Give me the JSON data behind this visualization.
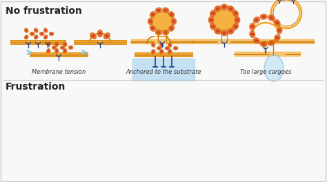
{
  "title_no_frustration": "No frustration",
  "title_frustration": "Frustration",
  "label_membrane_tension": "Membrane tension",
  "label_anchored": "Anchored to the substrate",
  "label_too_large": "Too large cargoes",
  "bg_color": "#f8f8f8",
  "border_color": "#cccccc",
  "membrane_color": "#f5a623",
  "membrane_dark": "#cc7700",
  "clathrin_outer": "#e8622a",
  "clathrin_inner": "#cc3311",
  "clathrin_highlight": "#ff9966",
  "adapter_color": "#1a3d8f",
  "adapter_light": "#4466cc",
  "cargo_color": "#cce8f5",
  "cargo_border": "#88bbdd",
  "substrate_color": "#aed6f1",
  "substrate_border": "#7fb3d3",
  "arrow_color": "#7ec8e3",
  "text_color": "#222222",
  "label_color": "#333333"
}
